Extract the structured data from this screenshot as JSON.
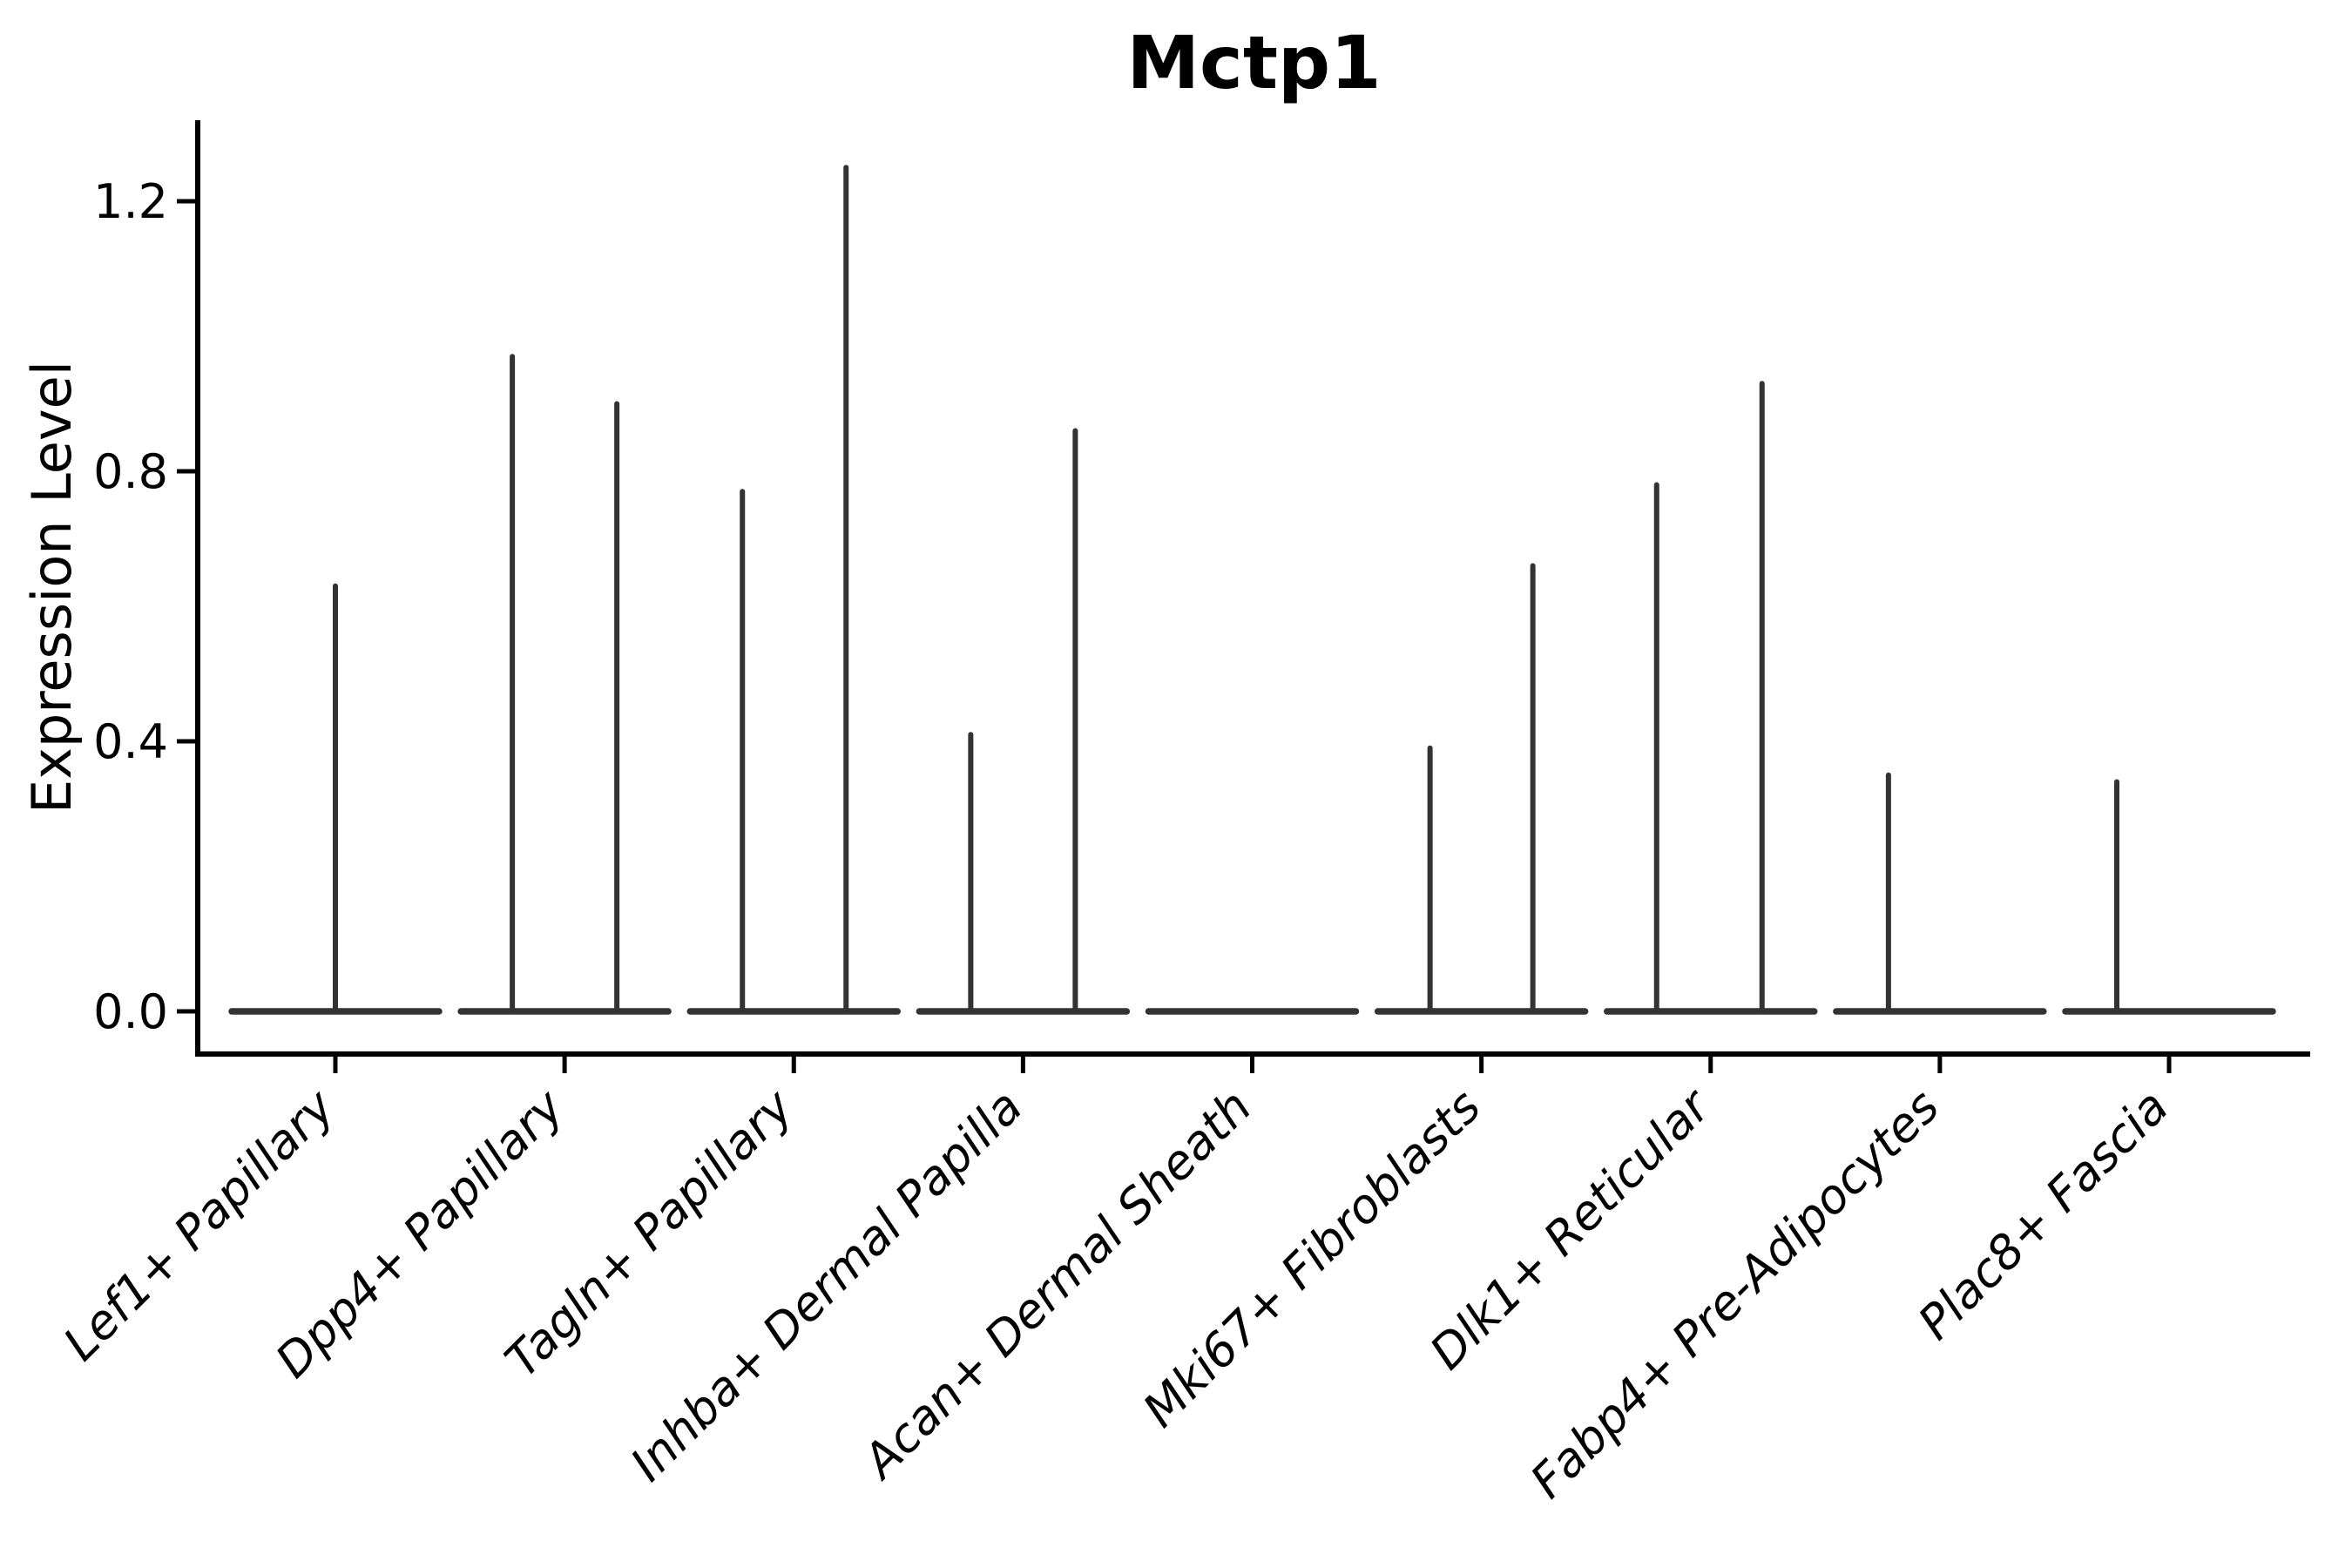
{
  "chart_data": {
    "type": "violin",
    "title": "Mctp1",
    "ylabel": "Expression Level",
    "xlabel": "",
    "grid": false,
    "legend": null,
    "ylim": [
      -0.063,
      1.32
    ],
    "yticks": [
      0.0,
      0.4,
      0.8,
      1.2
    ],
    "ytick_labels": [
      "0.0",
      "0.4",
      "0.8",
      "1.2"
    ],
    "categories": [
      "Lef1+ Papillary",
      "Dpp4+ Papillary",
      "Tagln+ Papillary",
      "Inhba+ Dermal Papilla",
      "Acan+ Dermal Sheath",
      "Mki67+ Fibroblasts",
      "Dlk1+ Reticular",
      "Fabp4+ Pre-Adipocytes",
      "Plac8+ Fascia"
    ],
    "violins": [
      {
        "category": "Lef1+ Papillary",
        "baseline_value": 0.0,
        "spikes": [
          {
            "dx": 0,
            "value": 0.63
          }
        ]
      },
      {
        "category": "Dpp4+ Papillary",
        "baseline_value": 0.0,
        "spikes": [
          {
            "dx": -60,
            "value": 0.97
          },
          {
            "dx": 60,
            "value": 0.9
          }
        ]
      },
      {
        "category": "Tagln+ Papillary",
        "baseline_value": 0.0,
        "spikes": [
          {
            "dx": -59,
            "value": 0.77
          },
          {
            "dx": 60,
            "value": 1.25
          }
        ]
      },
      {
        "category": "Inhba+ Dermal Papilla",
        "baseline_value": 0.0,
        "spikes": [
          {
            "dx": -60,
            "value": 0.41
          },
          {
            "dx": 60,
            "value": 0.86
          }
        ]
      },
      {
        "category": "Acan+ Dermal Sheath",
        "baseline_value": 0.0,
        "spikes": []
      },
      {
        "category": "Mki67+ Fibroblasts",
        "baseline_value": 0.0,
        "spikes": [
          {
            "dx": -59,
            "value": 0.39
          },
          {
            "dx": 59,
            "value": 0.66
          }
        ]
      },
      {
        "category": "Dlk1+ Reticular",
        "baseline_value": 0.0,
        "spikes": [
          {
            "dx": -62,
            "value": 0.78
          },
          {
            "dx": 59,
            "value": 0.93
          }
        ]
      },
      {
        "category": "Fabp4+ Pre-Adipocytes",
        "baseline_value": 0.0,
        "spikes": [
          {
            "dx": -59,
            "value": 0.35
          }
        ]
      },
      {
        "category": "Plac8+ Fascia",
        "baseline_value": 0.0,
        "spikes": [
          {
            "dx": -60,
            "value": 0.34
          }
        ]
      }
    ],
    "colors": {
      "violin": "#333333",
      "axis": "#000000",
      "text": "#000000",
      "background": "#ffffff"
    }
  }
}
